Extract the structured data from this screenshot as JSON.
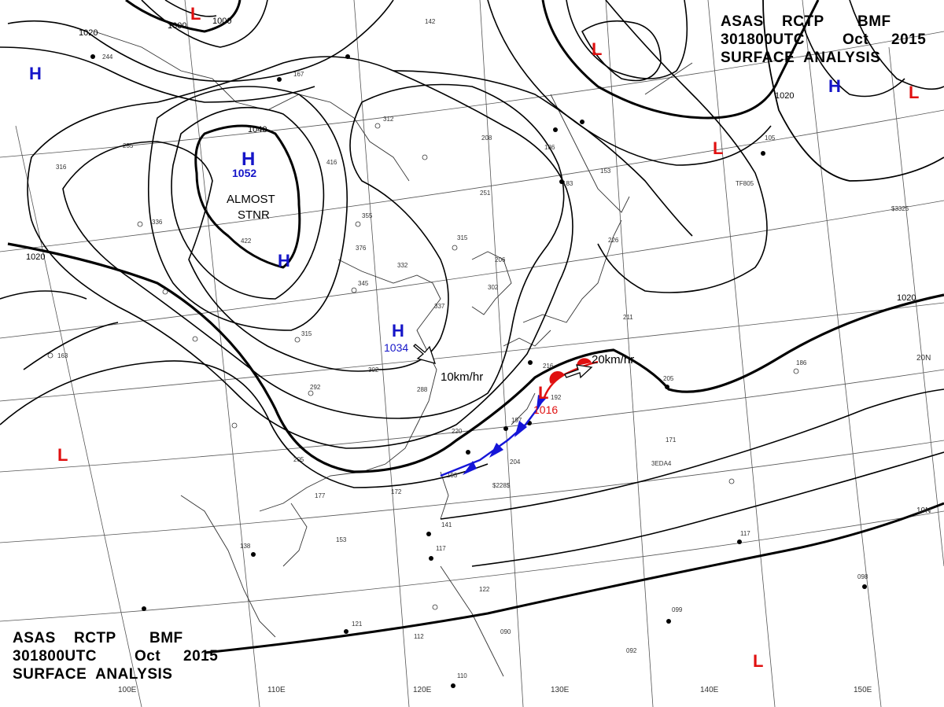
{
  "header": {
    "line1": [
      "ASAS",
      "RCTP",
      "BMF"
    ],
    "line2": [
      "301800UTC",
      "Oct",
      "2015"
    ],
    "line3": "SURFACE  ANALYSIS"
  },
  "footer": {
    "line1": [
      "ASAS",
      "RCTP",
      "BMF"
    ],
    "line2": [
      "301800UTC",
      "Oct",
      "2015"
    ],
    "line3": "SURFACE  ANALYSIS"
  },
  "isobar_labels": [
    "1000",
    "1000",
    "1020",
    "1040",
    "1020",
    "1020",
    "1020"
  ],
  "pressure_centers": [
    {
      "type": "H",
      "value": "1052",
      "color": "#1515c8"
    },
    {
      "type": "H",
      "value": "",
      "color": "#1515c8"
    },
    {
      "type": "H",
      "value": "1034",
      "color": "#1515c8"
    },
    {
      "type": "H",
      "value": "",
      "color": "#1515c8"
    },
    {
      "type": "H",
      "value": "",
      "color": "#1515c8"
    },
    {
      "type": "L",
      "value": "",
      "color": "#e01010"
    },
    {
      "type": "L",
      "value": "",
      "color": "#e01010"
    },
    {
      "type": "L",
      "value": "",
      "color": "#e01010"
    },
    {
      "type": "L",
      "value": "",
      "color": "#e01010"
    },
    {
      "type": "L",
      "value": "",
      "color": "#e01010"
    },
    {
      "type": "L",
      "value": "",
      "color": "#e01010"
    },
    {
      "type": "L",
      "value": "1016",
      "color": "#e01010"
    }
  ],
  "annotations": {
    "almost": "ALMOST",
    "stnr": "STNR",
    "motion_high": "10km/hr",
    "motion_low": "20km/hr"
  },
  "lon_labels": [
    "100E",
    "110E",
    "120E",
    "130E",
    "140E",
    "150E"
  ],
  "lat_labels": [
    "20N",
    "10N"
  ],
  "stations": [
    "142",
    "312",
    "416",
    "355",
    "376",
    "332",
    "345",
    "337",
    "315",
    "251",
    "302",
    "288",
    "208",
    "186",
    "153",
    "163",
    "422",
    "336",
    "316",
    "315",
    "292",
    "302",
    "205",
    "220",
    "193",
    "204",
    "197",
    "177",
    "172",
    "141",
    "117",
    "138",
    "153",
    "121",
    "112",
    "110",
    "090",
    "122",
    "117",
    "098",
    "092",
    "099",
    "186",
    "205",
    "171",
    "105",
    "211",
    "226",
    "183",
    "167",
    "244",
    "216",
    "255",
    "206",
    "192",
    "$228$",
    "3EDA4",
    "TF805",
    "$3325"
  ],
  "colors": {
    "high": "#1515c8",
    "low": "#e01010",
    "cold_front": "#1515d8",
    "warm_front": "#e01010",
    "lines": "#000000"
  }
}
